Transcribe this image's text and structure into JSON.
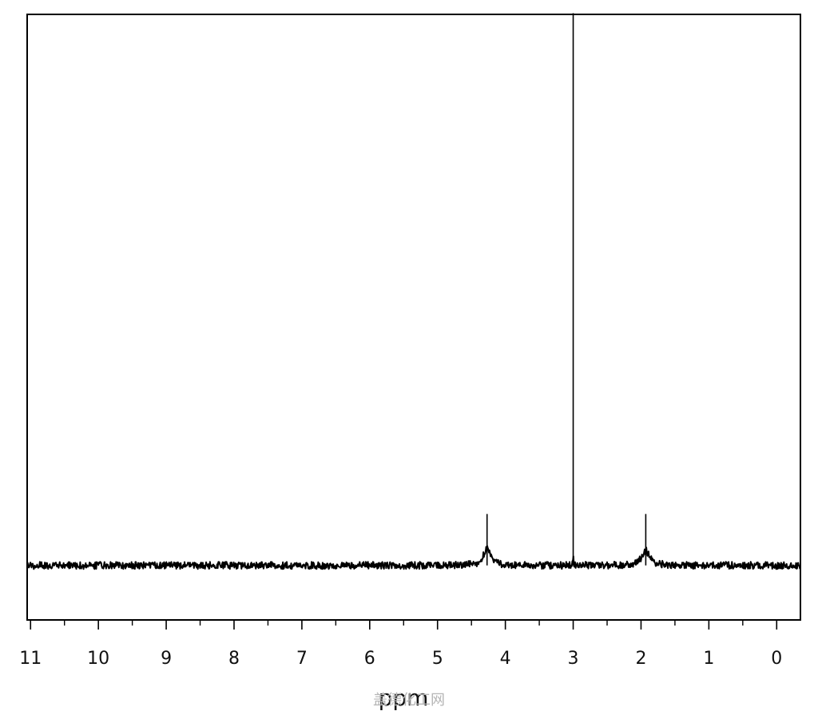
{
  "chart_data": {
    "type": "line",
    "title": "",
    "xlabel": "ppm",
    "ylabel": "",
    "xlim": [
      11.05,
      -0.35
    ],
    "x_reversed": true,
    "ylim": [
      0,
      1
    ],
    "grid": false,
    "x_major_ticks": [
      11,
      10,
      9,
      8,
      7,
      6,
      5,
      4,
      3,
      2,
      1,
      0
    ],
    "x_tick_labels": [
      "11",
      "10",
      "9",
      "8",
      "7",
      "6",
      "5",
      "4",
      "3",
      "2",
      "1",
      "0"
    ],
    "x_minor_step": 0.5,
    "series": [
      {
        "line_color": "#000000",
        "baseline": 0.09,
        "noise_amplitude": 0.006,
        "peaks": [
          {
            "ppm": 4.27,
            "height": 0.087,
            "spike_height": 0.085,
            "width": 0.06
          },
          {
            "ppm": 3.0,
            "height": 0.02,
            "spike_height": 0.912,
            "width": 0.004
          },
          {
            "ppm": 3.0,
            "height": 0.0,
            "spike_height": 0.13,
            "width": 0.004
          },
          {
            "ppm": 1.93,
            "height": 0.07,
            "spike_height": 0.085,
            "width": 0.07
          }
        ]
      }
    ]
  },
  "watermark": "盖德化工网"
}
